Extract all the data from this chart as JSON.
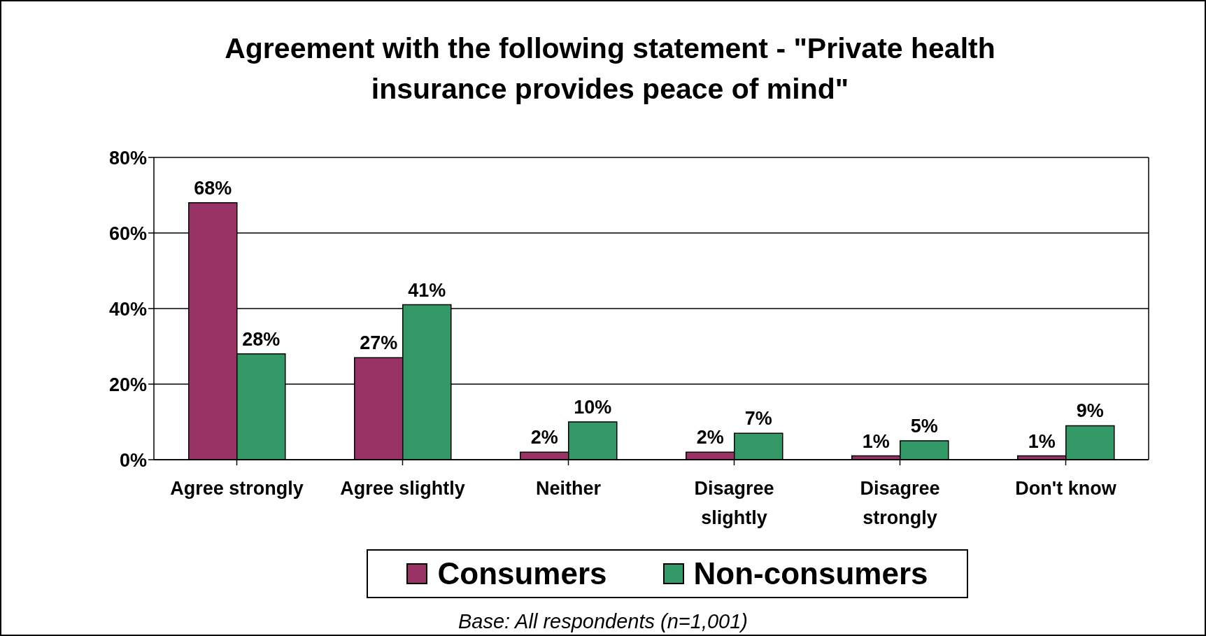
{
  "chart_data": {
    "type": "bar",
    "title": "Agreement with the following statement - \"Private health insurance provides peace of mind\"",
    "categories": [
      "Agree strongly",
      "Agree slightly",
      "Neither",
      "Disagree slightly",
      "Disagree strongly",
      "Don't know"
    ],
    "series": [
      {
        "name": "Consumers",
        "color": "#993366",
        "values": [
          68,
          27,
          2,
          2,
          1,
          1
        ],
        "value_labels": [
          "68%",
          "27%",
          "2%",
          "2%",
          "1%",
          "1%"
        ]
      },
      {
        "name": "Non-consumers",
        "color": "#339966",
        "values": [
          28,
          41,
          10,
          7,
          5,
          9
        ],
        "value_labels": [
          "28%",
          "41%",
          "10%",
          "7%",
          "5%",
          "9%"
        ]
      }
    ],
    "ylim": [
      0,
      80
    ],
    "yticks": [
      {
        "value": 0,
        "label": "0%"
      },
      {
        "value": 20,
        "label": "20%"
      },
      {
        "value": 40,
        "label": "40%"
      },
      {
        "value": 60,
        "label": "60%"
      },
      {
        "value": 80,
        "label": "80%"
      }
    ],
    "grid": "y",
    "legend": "bottom",
    "annotations": [
      "Base: All respondents  (n=1,001)"
    ]
  }
}
